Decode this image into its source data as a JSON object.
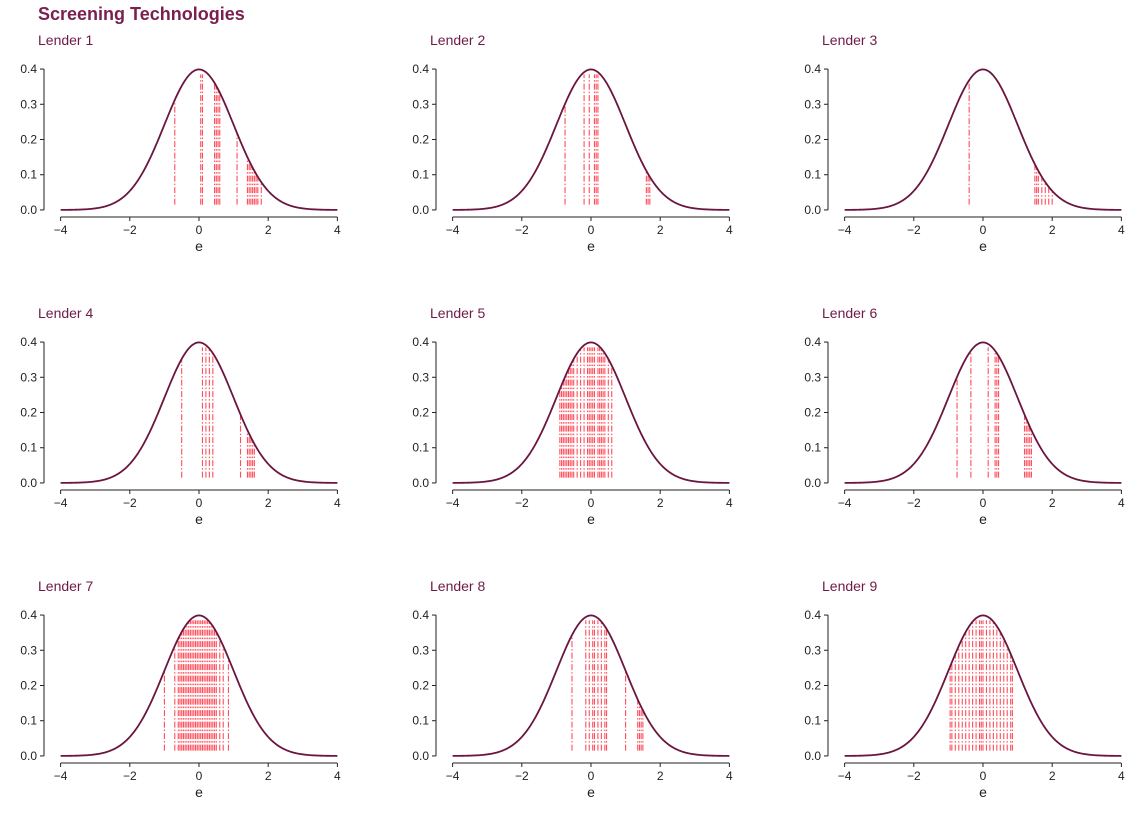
{
  "title": "Screening Technologies",
  "colors": {
    "title": "#7a1f4e",
    "curve": "#6b1640",
    "lines": "#ff4d5a",
    "axis": "#222222"
  },
  "chart_data": {
    "type": "line",
    "facets": 9,
    "curve": "standard normal density",
    "xlabel": "e",
    "ylabel": "",
    "xlim": [
      -4,
      4
    ],
    "ylim": [
      0,
      0.4
    ],
    "xticks": [
      "−4",
      "−2",
      "0",
      "2",
      "4"
    ],
    "yticks": [
      "0.0",
      "0.1",
      "0.2",
      "0.3",
      "0.4"
    ],
    "grid": false,
    "panels": [
      {
        "name": "Lender 1",
        "positions": [
          -0.7,
          0.05,
          0.1,
          0.45,
          0.5,
          0.55,
          0.6,
          1.1,
          1.4,
          1.45,
          1.5,
          1.55,
          1.6,
          1.65,
          1.7,
          1.8
        ]
      },
      {
        "name": "Lender 2",
        "positions": [
          -0.75,
          -0.2,
          -0.05,
          0.1,
          0.15,
          0.2,
          1.6,
          1.65,
          1.7
        ]
      },
      {
        "name": "Lender 3",
        "positions": [
          -0.4,
          1.5,
          1.55,
          1.6,
          1.7,
          1.8,
          1.9,
          2.0
        ]
      },
      {
        "name": "Lender 4",
        "positions": [
          -0.5,
          0.1,
          0.2,
          0.3,
          0.4,
          1.2,
          1.4,
          1.45,
          1.5,
          1.55,
          1.6
        ]
      },
      {
        "name": "Lender 5",
        "positions": [
          -0.9,
          -0.85,
          -0.8,
          -0.75,
          -0.7,
          -0.65,
          -0.6,
          -0.55,
          -0.5,
          -0.4,
          -0.3,
          -0.2,
          -0.1,
          -0.05,
          0.0,
          0.05,
          0.1,
          0.2,
          0.25,
          0.3,
          0.35,
          0.4,
          0.5,
          0.6
        ]
      },
      {
        "name": "Lender 6",
        "positions": [
          -0.75,
          -0.35,
          0.15,
          0.35,
          0.4,
          0.45,
          1.2,
          1.25,
          1.3,
          1.35,
          1.4
        ]
      },
      {
        "name": "Lender 7",
        "positions": [
          -1.0,
          -0.7,
          -0.6,
          -0.55,
          -0.5,
          -0.45,
          -0.4,
          -0.35,
          -0.3,
          -0.25,
          -0.2,
          -0.15,
          -0.1,
          -0.05,
          0.0,
          0.05,
          0.1,
          0.15,
          0.2,
          0.25,
          0.3,
          0.35,
          0.4,
          0.45,
          0.5,
          0.6,
          0.7,
          0.85
        ]
      },
      {
        "name": "Lender 8",
        "positions": [
          -0.55,
          -0.15,
          -0.05,
          0.05,
          0.1,
          0.2,
          0.3,
          0.4,
          0.45,
          1.0,
          1.35,
          1.4,
          1.45,
          1.5
        ]
      },
      {
        "name": "Lender 9",
        "positions": [
          -0.95,
          -0.9,
          -0.8,
          -0.7,
          -0.6,
          -0.5,
          -0.4,
          -0.3,
          -0.2,
          -0.1,
          -0.05,
          0.0,
          0.1,
          0.2,
          0.3,
          0.4,
          0.5,
          0.6,
          0.7,
          0.8,
          0.85
        ]
      }
    ]
  }
}
